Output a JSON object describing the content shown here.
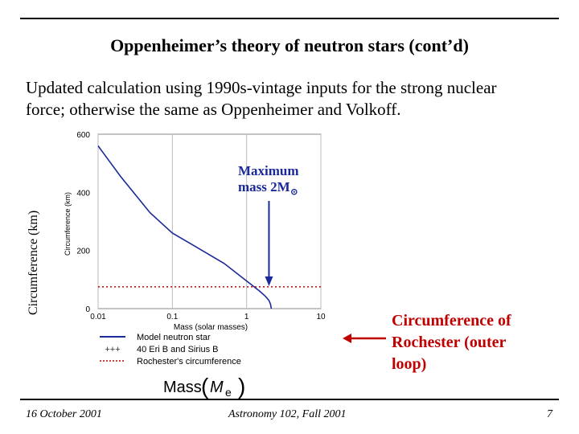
{
  "slide": {
    "title": "Oppenheimer’s theory of neutron stars (cont’d)",
    "subtitle_line1": "Updated calculation using 1990s-vintage inputs for the strong nuclear",
    "subtitle_line2": "force; otherwise the same as Oppenheimer and Volkoff."
  },
  "annotations": {
    "max_mass_line1": "Maximum",
    "max_mass_line2": "mass 2M",
    "max_mass_subscript": "⊙",
    "rochester_line1": "Circumference of",
    "rochester_line2": "Rochester (outer",
    "rochester_line3": "loop)"
  },
  "footer": {
    "date": "16 October 2001",
    "course": "Astronomy 102, Fall 2001",
    "page": "7"
  },
  "colors": {
    "model": "#1a2a9a",
    "rochester": "#c00000",
    "arrow": "#1a2a9a"
  },
  "chart_data": {
    "type": "line",
    "xscale": "log",
    "xlim": [
      0.01,
      10
    ],
    "ylim": [
      0,
      600
    ],
    "x_ticks": [
      "0.01",
      "0.1",
      "1",
      "10"
    ],
    "y_ticks": [
      "0",
      "200",
      "400",
      "600"
    ],
    "xlabel": "Mass (solar masses)",
    "ylabel_inner": "Circumference (km)",
    "ylabel_outer": "Circumference (km)",
    "xlabel_big_prefix": "Mass",
    "xlabel_big_symbol": "M",
    "xlabel_big_sub": "e",
    "series": [
      {
        "name": "Model neutron star",
        "style": "solid",
        "points": [
          [
            0.01,
            560
          ],
          [
            0.02,
            455
          ],
          [
            0.05,
            330
          ],
          [
            0.1,
            260
          ],
          [
            0.2,
            215
          ],
          [
            0.5,
            155
          ],
          [
            1.0,
            95
          ],
          [
            1.5,
            60
          ],
          [
            1.8,
            42
          ],
          [
            2.0,
            28
          ],
          [
            2.1,
            15
          ],
          [
            2.15,
            0
          ]
        ]
      },
      {
        "name": "Rochester's circumference",
        "style": "dotted",
        "y": 75
      }
    ],
    "legend": [
      {
        "marker": "line",
        "label": "Model neutron star"
      },
      {
        "marker": "+++",
        "label": "40 Eri B and Sirius B"
      },
      {
        "marker": "dots",
        "label": "Rochester's circumference"
      }
    ],
    "max_mass_marker": 2.0
  }
}
